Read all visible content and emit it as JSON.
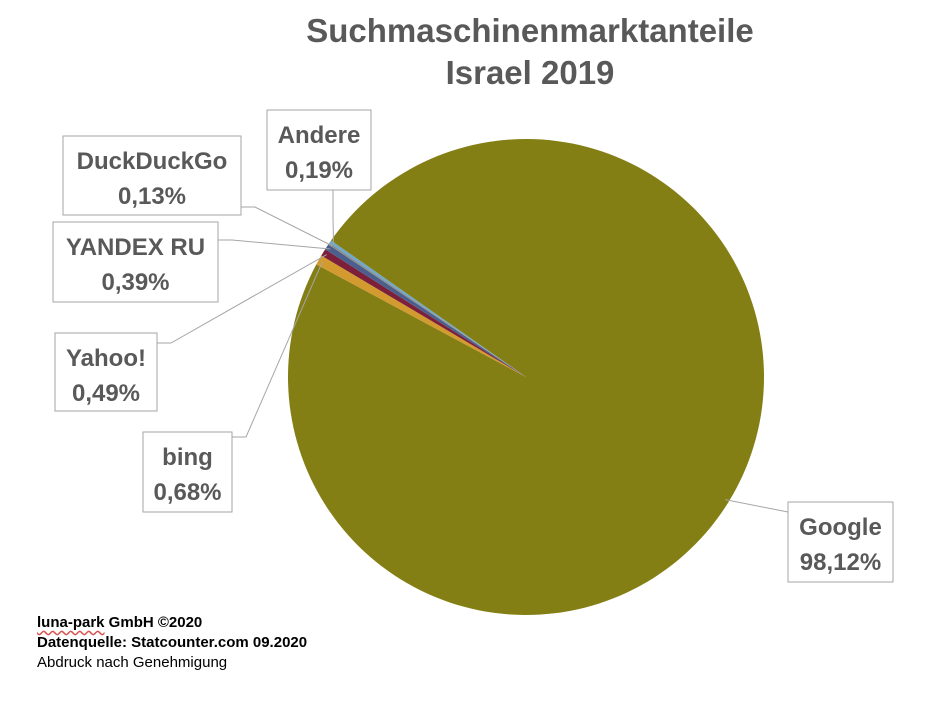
{
  "chart_data": {
    "type": "pie",
    "title": [
      "Suchmaschinenmarktanteile",
      "Israel 2019"
    ],
    "slices": [
      {
        "name": "Google",
        "value": 98.12,
        "label": "98,12%",
        "color": "#847f14"
      },
      {
        "name": "bing",
        "value": 0.68,
        "label": "0,68%",
        "color": "#d39a2f"
      },
      {
        "name": "Yahoo!",
        "value": 0.49,
        "label": "0,49%",
        "color": "#7b1f3a"
      },
      {
        "name": "YANDEX RU",
        "value": 0.39,
        "label": "0,39%",
        "color": "#4a5f8c"
      },
      {
        "name": "DuckDuckGo",
        "value": 0.13,
        "label": "0,13%",
        "color": "#8c8c8c"
      },
      {
        "name": "Andere",
        "value": 0.19,
        "label": "0,19%",
        "color": "#6fa8c9"
      }
    ],
    "legend": "none"
  },
  "footer": {
    "line1_brand": "luna-park",
    "line1_rest": " GmbH ©2020",
    "line2": "Datenquelle: Statcounter.com 09.2020",
    "line3": "Abdruck nach Genehmigung"
  }
}
